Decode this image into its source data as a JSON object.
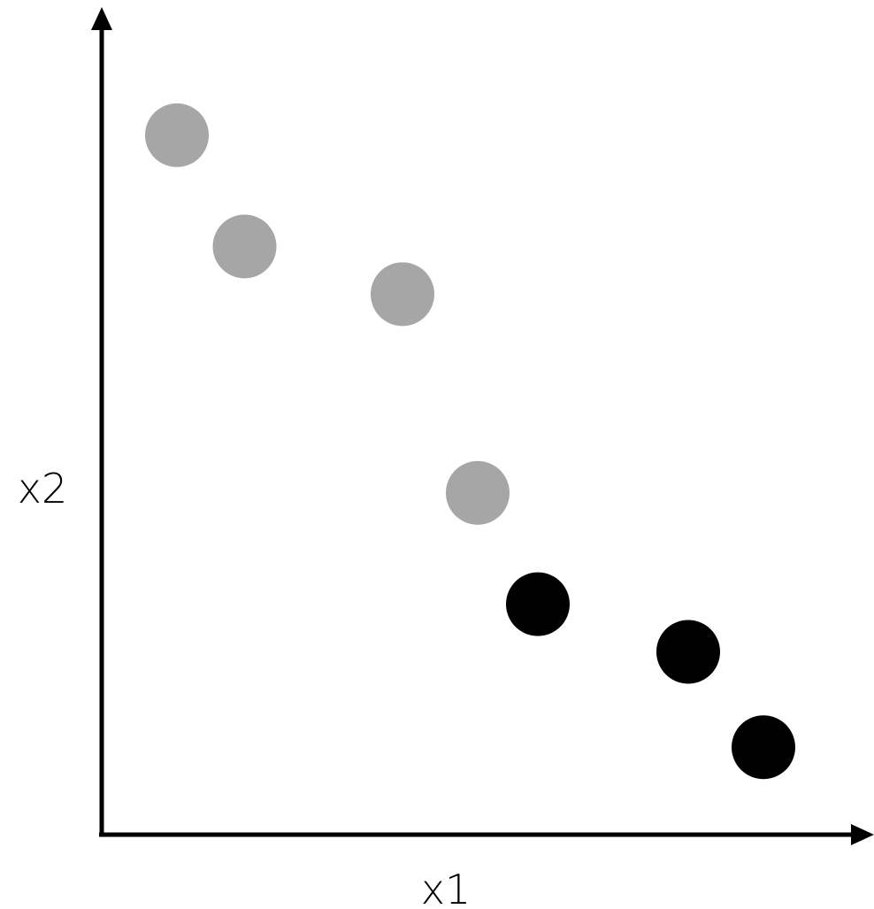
{
  "chart_data": {
    "type": "scatter",
    "title": "",
    "xlabel": "x1",
    "ylabel": "x2",
    "xlim": [
      0,
      10
    ],
    "ylim": [
      0,
      10
    ],
    "grid": false,
    "legend": "none",
    "series": [
      {
        "color": "#a6a6a6",
        "points": [
          {
            "x": 1.0,
            "y": 8.8
          },
          {
            "x": 1.9,
            "y": 7.4
          },
          {
            "x": 4.0,
            "y": 6.8
          },
          {
            "x": 5.0,
            "y": 4.3
          }
        ]
      },
      {
        "color": "#000000",
        "points": [
          {
            "x": 5.8,
            "y": 2.9
          },
          {
            "x": 7.8,
            "y": 2.3
          },
          {
            "x": 8.8,
            "y": 1.1
          }
        ]
      }
    ]
  }
}
